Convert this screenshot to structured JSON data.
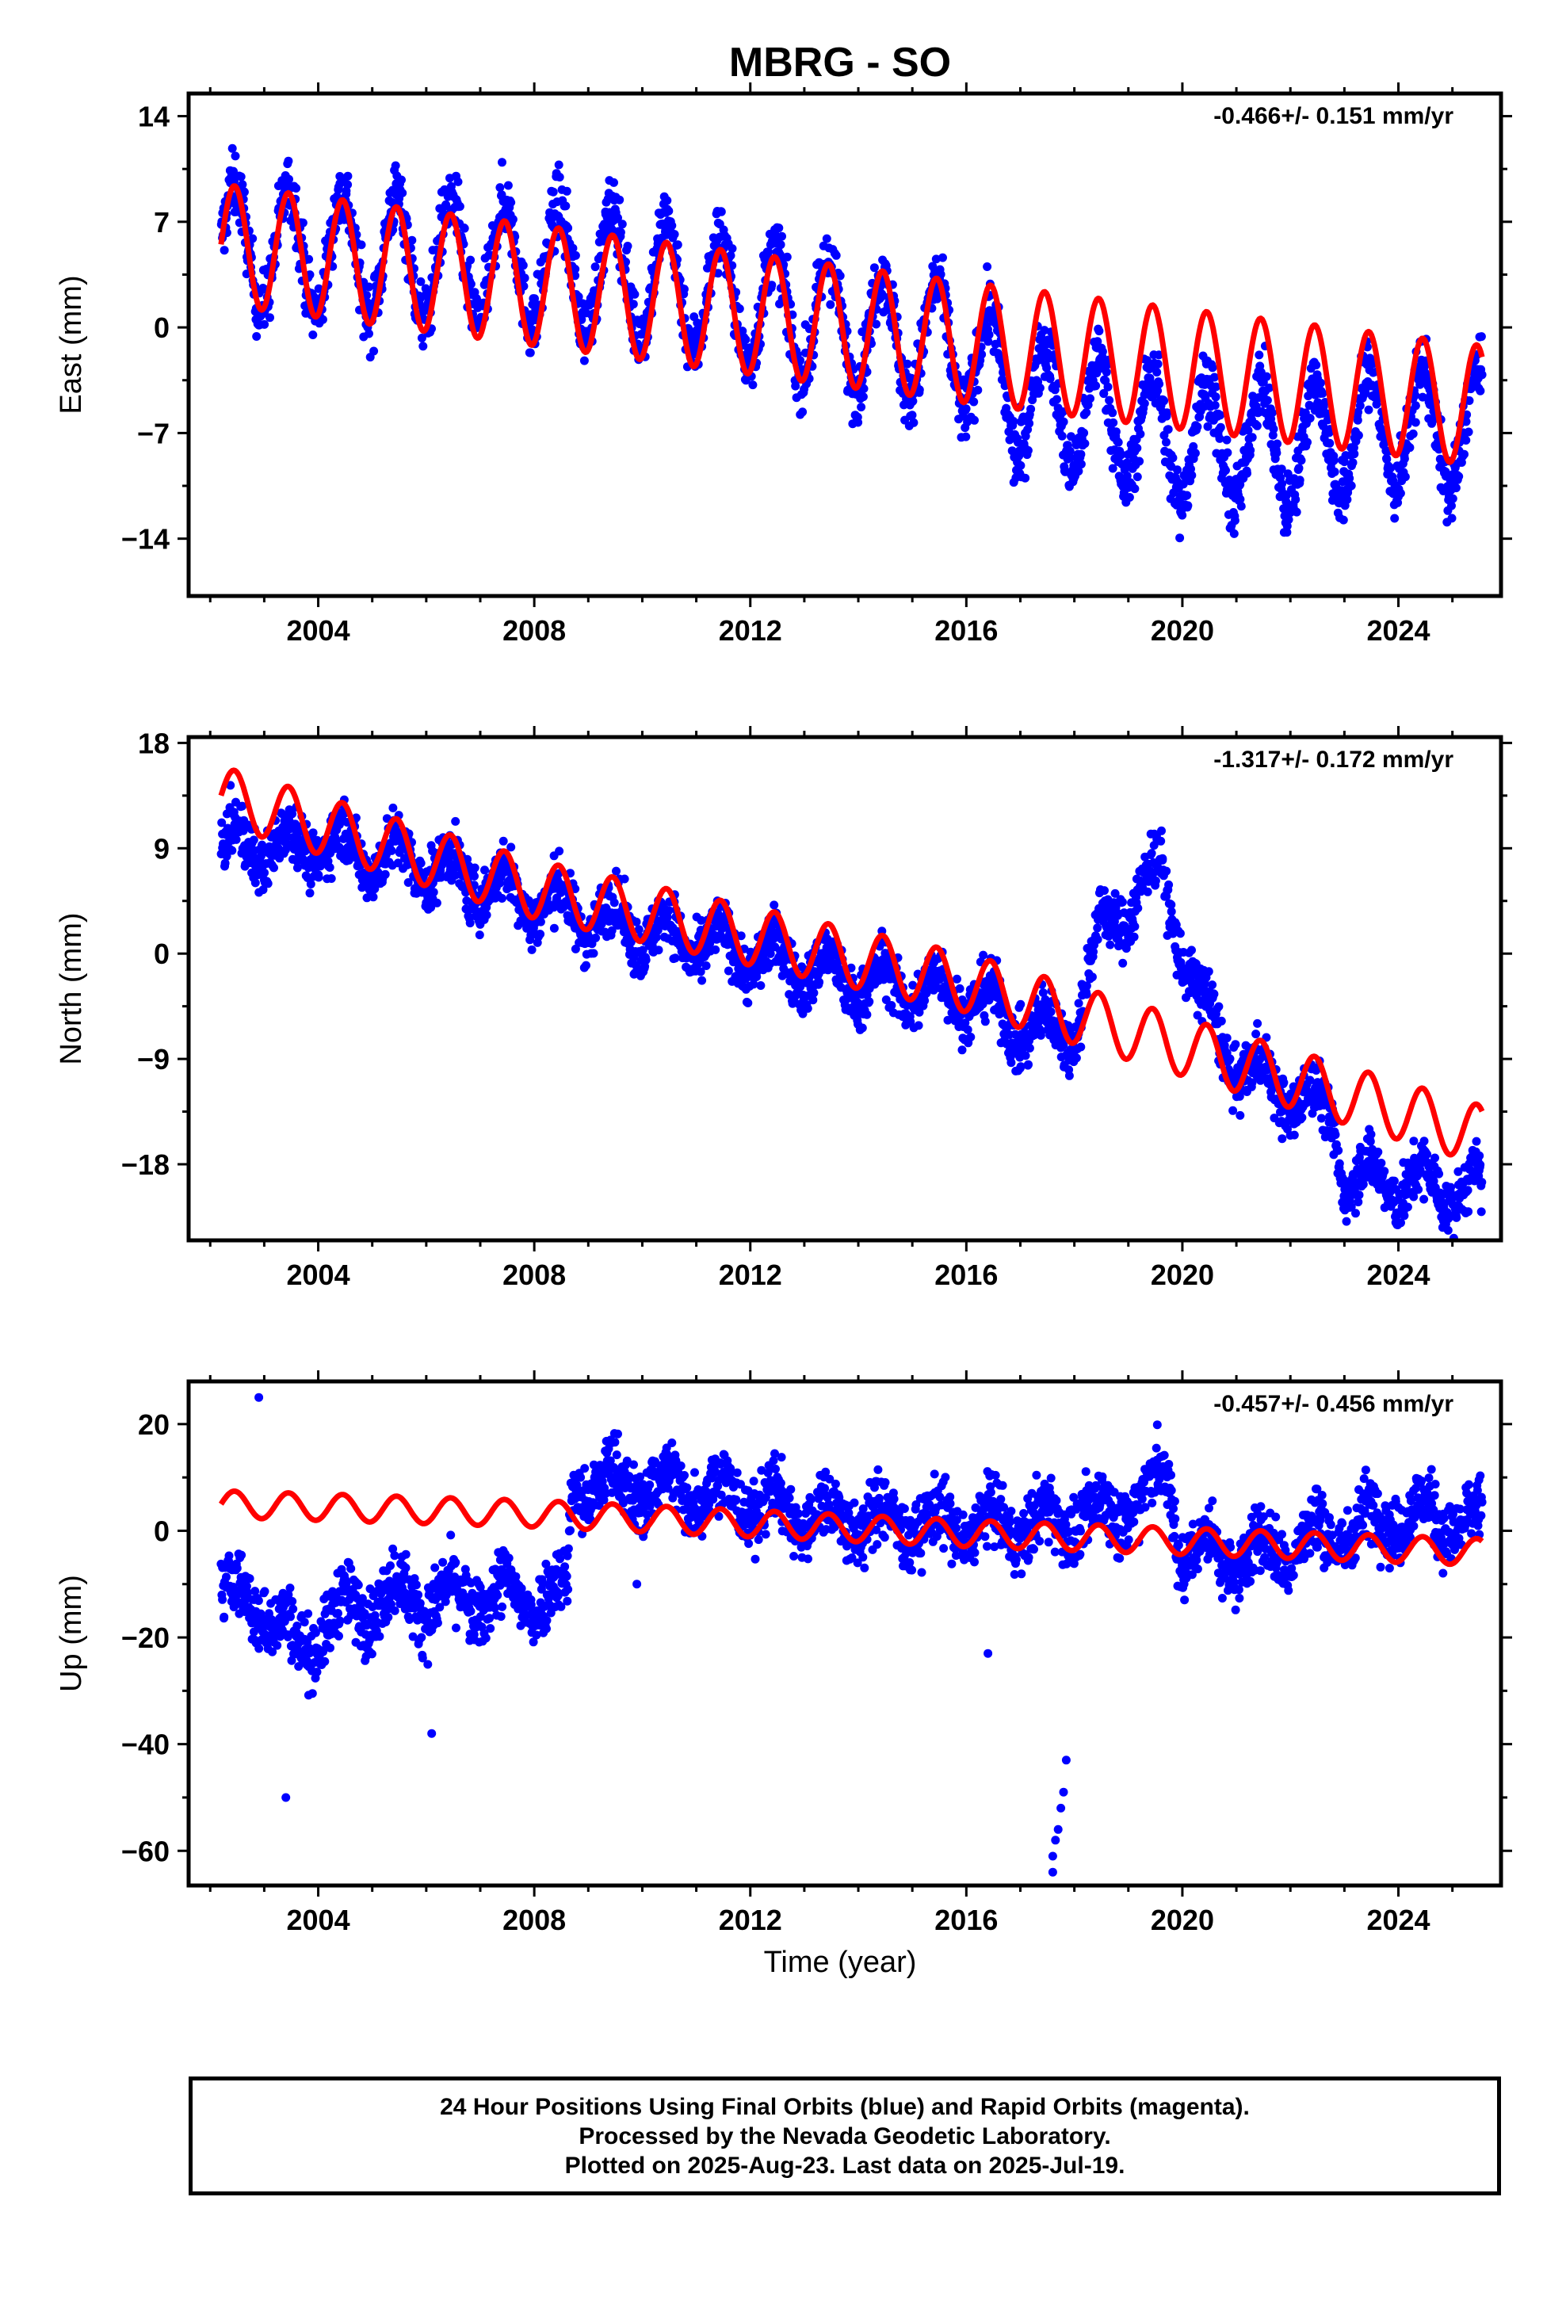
{
  "title": "MBRG - SO",
  "x_axis_label": "Time (year)",
  "footer": {
    "line1": "24 Hour Positions Using Final Orbits (blue) and Rapid Orbits (magenta).",
    "line2": "Processed by the Nevada Geodetic Laboratory.",
    "line3": "Plotted on 2025-Aug-23. Last data on 2025-Jul-19."
  },
  "colors": {
    "observations": "#0000ff",
    "model_fit": "#ff0000"
  },
  "chart_data": [
    {
      "type": "scatter",
      "panel": "east",
      "ylabel": "East (mm)",
      "rate_label": "-0.466+/- 0.151 mm/yr",
      "xlim": [
        2001.6,
        2025.9
      ],
      "ylim": [
        -17.8,
        15.5
      ],
      "xticks": [
        2004,
        2008,
        2012,
        2016,
        2020,
        2024
      ],
      "yticks": [
        14,
        7,
        0,
        -7,
        -14
      ],
      "ytick_labels": [
        "14",
        "7",
        "0",
        "−7",
        "−14"
      ],
      "grid": false,
      "data_span": [
        2002.2,
        2025.55
      ],
      "series": [
        {
          "role": "observations",
          "density": 2600,
          "trend": [
            [
              2002.2,
              5.5
            ],
            [
              2004,
              5.0
            ],
            [
              2008,
              4.2
            ],
            [
              2010,
              3.5
            ],
            [
              2012,
              1.5
            ],
            [
              2014,
              0.0
            ],
            [
              2016,
              -1.5
            ],
            [
              2016.9,
              -4.5
            ],
            [
              2018,
              -5.5
            ],
            [
              2020,
              -7.5
            ],
            [
              2022,
              -8.0
            ],
            [
              2024,
              -6.5
            ],
            [
              2025.55,
              -7.0
            ]
          ],
          "amplitude": 4.0,
          "scatter": 1.6
        },
        {
          "role": "model_fit",
          "trend": [
            [
              2002.2,
              5.5
            ],
            [
              2008,
              2.8
            ],
            [
              2016,
              -1.0
            ],
            [
              2025.55,
              -5.2
            ]
          ],
          "amplitude": 4.0
        }
      ]
    },
    {
      "type": "scatter",
      "panel": "north",
      "ylabel": "North (mm)",
      "rate_label": "-1.317+/- 0.172 mm/yr",
      "xlim": [
        2001.6,
        2025.9
      ],
      "ylim": [
        -24.5,
        18.5
      ],
      "xticks": [
        2004,
        2008,
        2012,
        2016,
        2020,
        2024
      ],
      "yticks": [
        18,
        9,
        0,
        -9,
        -18
      ],
      "ytick_labels": [
        "18",
        "9",
        "0",
        "−9",
        "−18"
      ],
      "grid": false,
      "data_span": [
        2002.2,
        2025.55
      ],
      "series": [
        {
          "role": "observations",
          "density": 2600,
          "trend": [
            [
              2002.2,
              9.0
            ],
            [
              2004,
              9.5
            ],
            [
              2006,
              7.5
            ],
            [
              2008,
              4.5
            ],
            [
              2010,
              2.0
            ],
            [
              2012,
              0.0
            ],
            [
              2014,
              -2.5
            ],
            [
              2016,
              -3.5
            ],
            [
              2017.3,
              -7.0
            ],
            [
              2018,
              -6.0
            ],
            [
              2018.5,
              2.0
            ],
            [
              2019.6,
              7.0
            ],
            [
              2020.3,
              -4.0
            ],
            [
              2021,
              -9.5
            ],
            [
              2022,
              -12.0
            ],
            [
              2022.8,
              -14.0
            ],
            [
              2023,
              -19.0
            ],
            [
              2025.55,
              -20.5
            ]
          ],
          "amplitude": 1.8,
          "scatter": 1.8
        },
        {
          "role": "model_fit",
          "trend": [
            [
              2002.2,
              13.5
            ],
            [
              2008,
              5.5
            ],
            [
              2016,
              -2.5
            ],
            [
              2025.55,
              -15.5
            ]
          ],
          "amplitude": 2.5
        }
      ]
    },
    {
      "type": "scatter",
      "panel": "up",
      "ylabel": "Up (mm)",
      "rate_label": "-0.457+/- 0.456 mm/yr",
      "xlim": [
        2001.6,
        2025.9
      ],
      "ylim": [
        -66.5,
        28.0
      ],
      "xticks": [
        2004,
        2008,
        2012,
        2016,
        2020,
        2024
      ],
      "yticks": [
        20,
        0,
        -20,
        -40,
        -60
      ],
      "ytick_labels": [
        "20",
        "0",
        "−20",
        "−40",
        "−60"
      ],
      "grid": false,
      "data_span": [
        2002.2,
        2025.55
      ],
      "series": [
        {
          "role": "observations",
          "density": 2600,
          "trend": [
            [
              2002.2,
              -12
            ],
            [
              2003,
              -14
            ],
            [
              2003.6,
              -22
            ],
            [
              2004.5,
              -15
            ],
            [
              2005.5,
              -12
            ],
            [
              2006,
              -13
            ],
            [
              2008.6,
              -12
            ],
            [
              2008.7,
              9
            ],
            [
              2011,
              8
            ],
            [
              2013,
              3
            ],
            [
              2015,
              1
            ],
            [
              2017,
              1
            ],
            [
              2018.6,
              3
            ],
            [
              2019.8,
              10
            ],
            [
              2019.9,
              -3
            ],
            [
              2021,
              -5
            ],
            [
              2022,
              -3
            ],
            [
              2024,
              3
            ],
            [
              2025.55,
              1
            ]
          ],
          "amplitude": 3.5,
          "scatter": 4.5,
          "outliers": [
            [
              2003.4,
              -50
            ],
            [
              2002.9,
              25
            ],
            [
              2006.1,
              -38
            ],
            [
              2009.9,
              -10
            ],
            [
              2016.4,
              -23
            ],
            [
              2017.6,
              -64
            ],
            [
              2017.6,
              -61
            ],
            [
              2017.65,
              -58
            ],
            [
              2017.7,
              -56
            ],
            [
              2017.75,
              -52
            ],
            [
              2017.8,
              -49
            ],
            [
              2017.85,
              -43
            ]
          ]
        },
        {
          "role": "model_fit",
          "trend": [
            [
              2002.2,
              5.0
            ],
            [
              2008,
              3.2
            ],
            [
              2016,
              -0.5
            ],
            [
              2025.55,
              -4.0
            ]
          ],
          "amplitude": 2.5
        }
      ]
    }
  ]
}
